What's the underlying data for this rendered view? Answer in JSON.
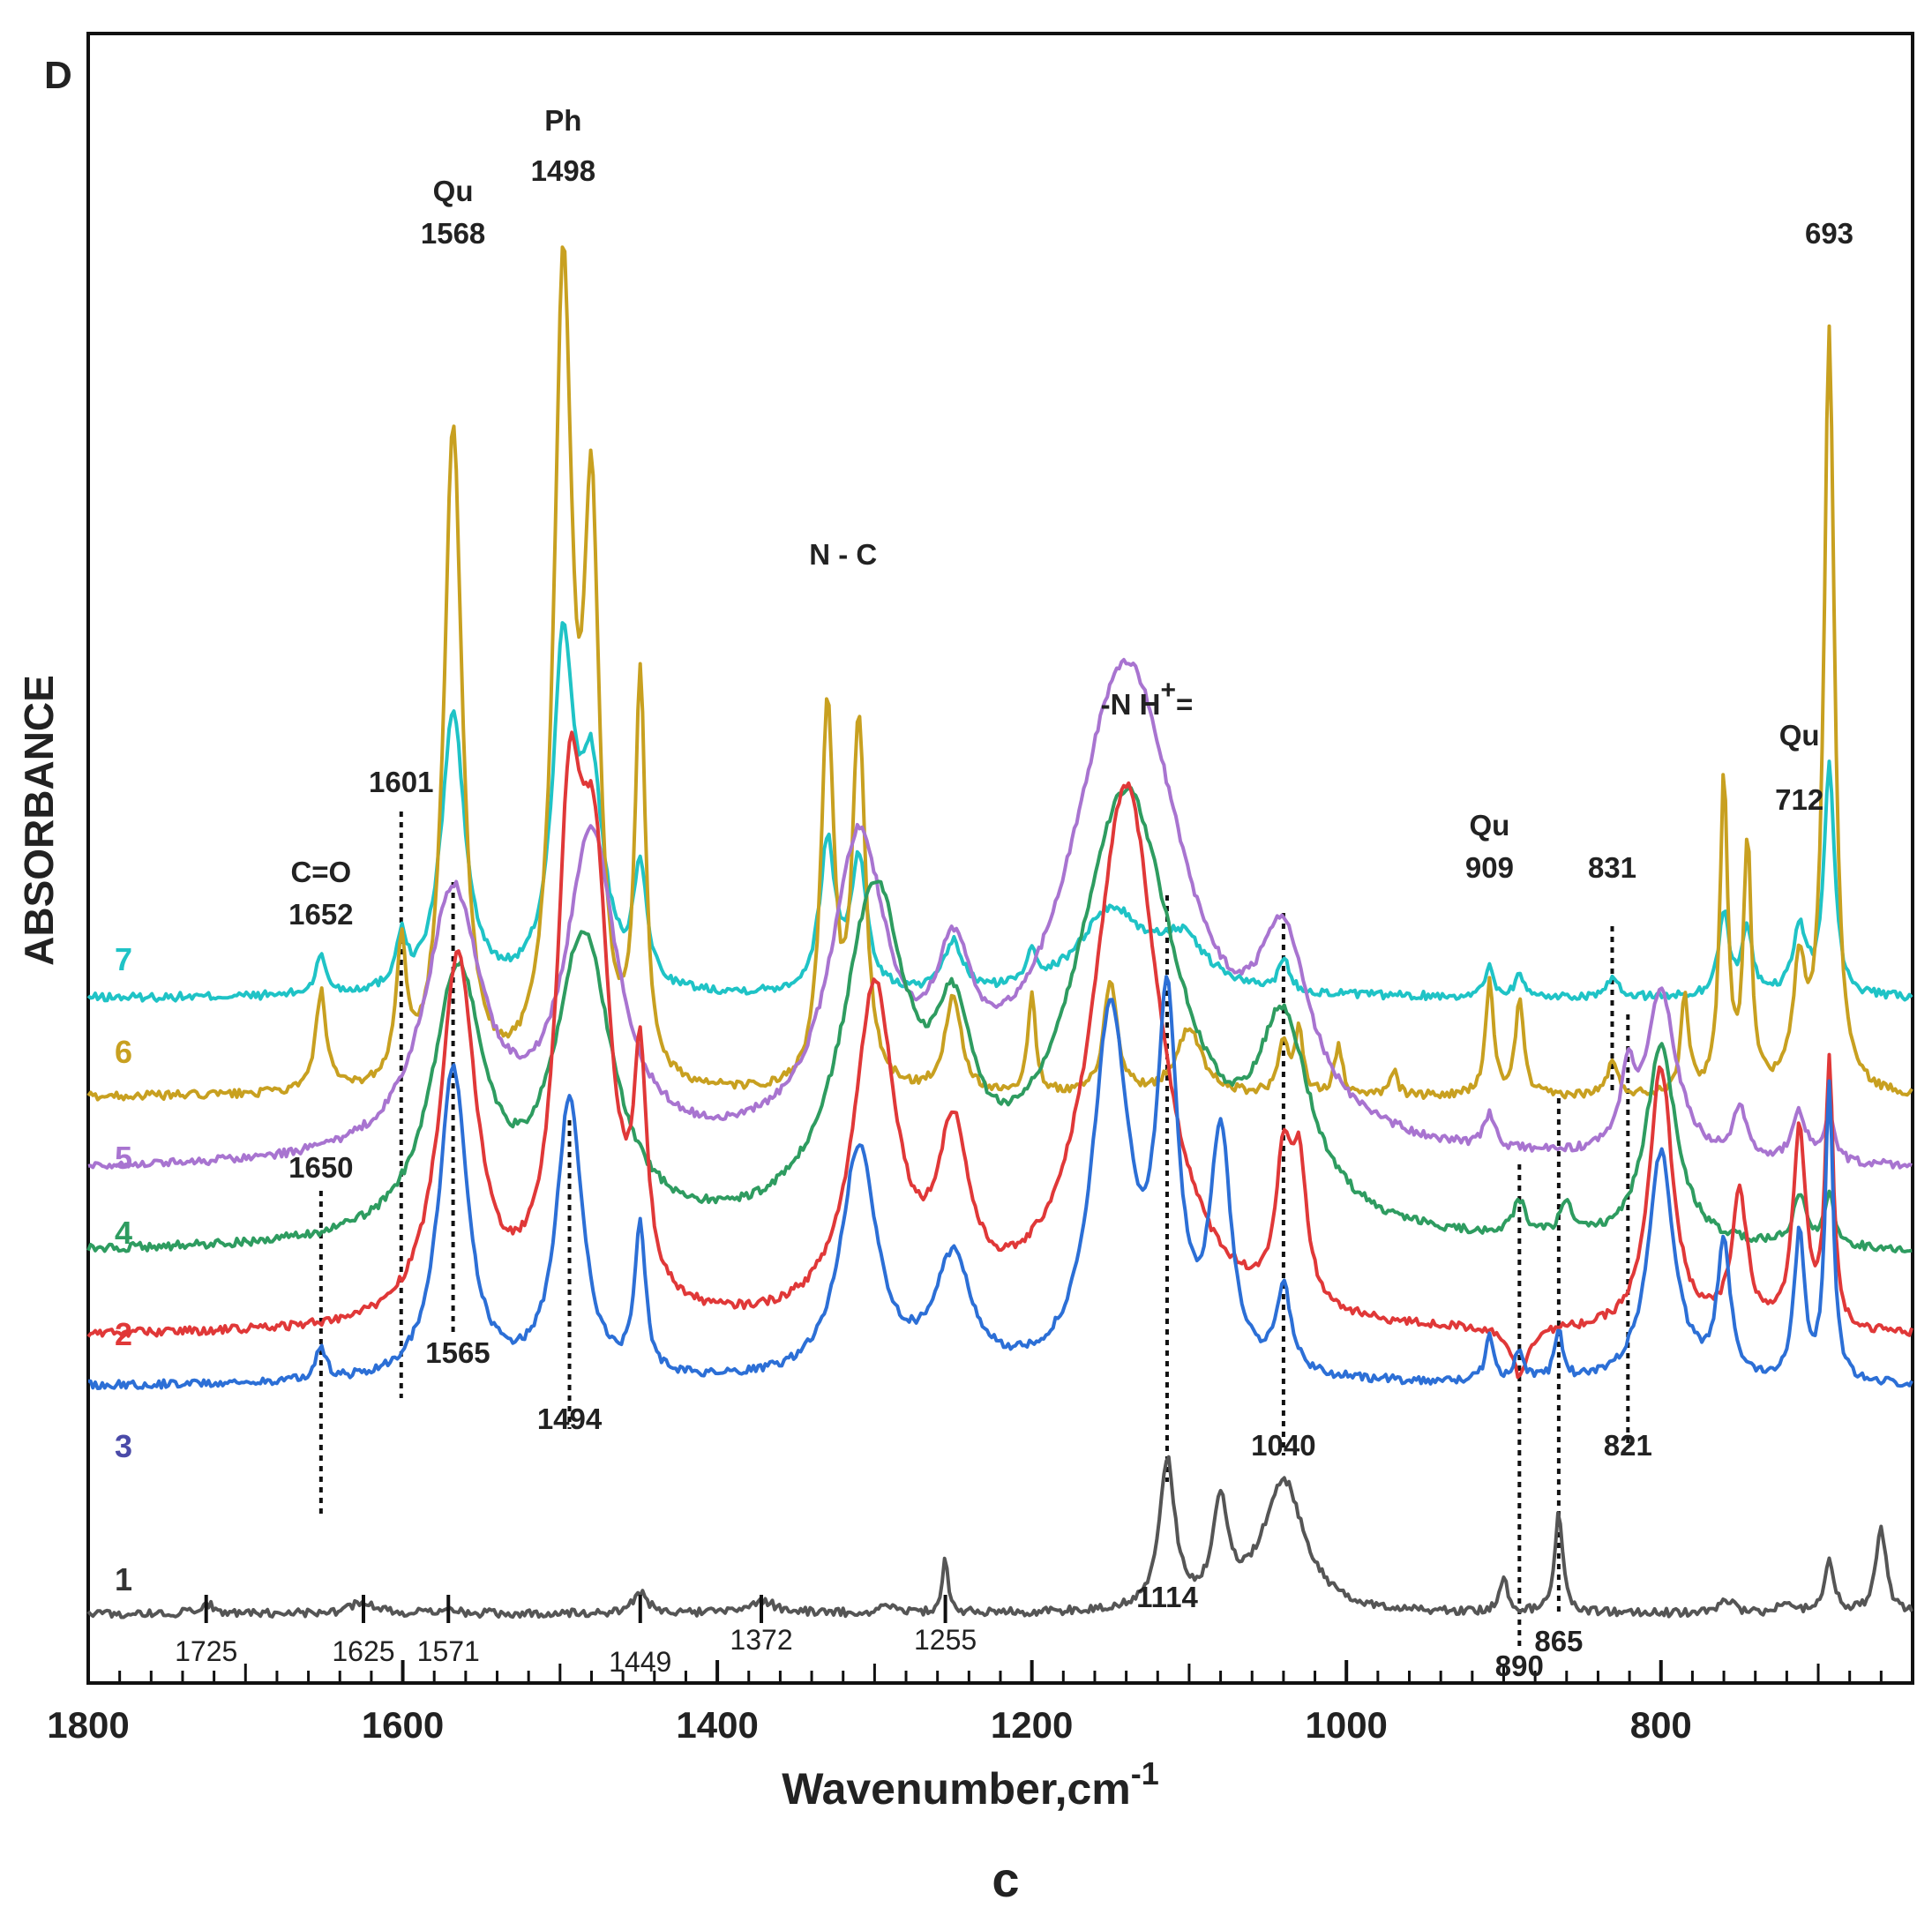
{
  "chart_data": {
    "type": "line",
    "panel_label": "D",
    "caption": "c",
    "xlabel": "Wavenumber,cm",
    "xlabel_sup": "-1",
    "ylabel": "ABSORBANCE",
    "xlim": [
      1800,
      640
    ],
    "ylim": [
      0,
      100
    ],
    "x_ticks": [
      1800,
      1600,
      1400,
      1200,
      1000,
      800
    ],
    "x_tick_labels": [
      "1800",
      "1600",
      "1400",
      "1200",
      "1000",
      "800"
    ],
    "series": [
      {
        "name": "7",
        "color": "#1fc3c6",
        "offset": 42,
        "baseline": 41.5,
        "peaks": [
          [
            1652,
            2.3,
            4
          ],
          [
            1601,
            3,
            4
          ],
          [
            1568,
            17,
            9
          ],
          [
            1498,
            20,
            8
          ],
          [
            1480,
            12,
            9
          ],
          [
            1449,
            7,
            5
          ],
          [
            1330,
            9,
            6
          ],
          [
            1310,
            8,
            6
          ],
          [
            1250,
            3,
            7
          ],
          [
            1200,
            2,
            4
          ],
          [
            1150,
            5,
            25
          ],
          [
            1105,
            3,
            20
          ],
          [
            1040,
            2,
            4
          ],
          [
            909,
            2,
            3
          ],
          [
            890,
            1.5,
            3
          ],
          [
            831,
            1,
            5
          ],
          [
            760,
            5,
            4
          ],
          [
            745,
            4,
            4
          ],
          [
            712,
            4,
            5
          ],
          [
            693,
            14,
            4
          ]
        ]
      },
      {
        "name": "6",
        "color": "#c8a020",
        "offset": 36,
        "baseline": 35.5,
        "peaks": [
          [
            1652,
            6,
            4
          ],
          [
            1601,
            8,
            4
          ],
          [
            1568,
            40,
            7
          ],
          [
            1498,
            48,
            7
          ],
          [
            1480,
            32,
            6
          ],
          [
            1449,
            24,
            4
          ],
          [
            1330,
            23,
            5
          ],
          [
            1310,
            22,
            5
          ],
          [
            1250,
            6,
            6
          ],
          [
            1200,
            6,
            3
          ],
          [
            1150,
            7,
            5
          ],
          [
            1100,
            4,
            10
          ],
          [
            1040,
            3,
            4
          ],
          [
            1030,
            4,
            3
          ],
          [
            1005,
            3,
            3
          ],
          [
            970,
            1.5,
            3
          ],
          [
            909,
            7,
            3
          ],
          [
            890,
            6,
            3
          ],
          [
            831,
            2,
            4
          ],
          [
            785,
            6,
            3
          ],
          [
            760,
            19,
            3
          ],
          [
            745,
            15,
            3
          ],
          [
            712,
            7,
            5
          ],
          [
            693,
            46,
            4
          ]
        ]
      },
      {
        "name": "5",
        "color": "#a874d0",
        "offset": 30,
        "baseline": 31,
        "peaks": [
          [
            1568,
            16,
            22
          ],
          [
            1480,
            19,
            20
          ],
          [
            1310,
            18,
            22
          ],
          [
            1250,
            8,
            15
          ],
          [
            1140,
            30,
            45
          ],
          [
            1040,
            10,
            20
          ],
          [
            909,
            2,
            4
          ],
          [
            821,
            4,
            5
          ],
          [
            800,
            10,
            12
          ],
          [
            750,
            3,
            5
          ],
          [
            712,
            3,
            5
          ],
          [
            693,
            3,
            4
          ]
        ]
      },
      {
        "name": "4",
        "color": "#2e9c60",
        "offset": 26,
        "baseline": 26,
        "peaks": [
          [
            1565,
            16,
            20
          ],
          [
            1485,
            18,
            22
          ],
          [
            1300,
            20,
            25
          ],
          [
            1250,
            9,
            15
          ],
          [
            1140,
            27,
            40
          ],
          [
            1040,
            11,
            20
          ],
          [
            890,
            2,
            5
          ],
          [
            860,
            2,
            5
          ],
          [
            800,
            12,
            12
          ],
          [
            712,
            3,
            5
          ],
          [
            693,
            3,
            4
          ]
        ]
      },
      {
        "name": "2",
        "color": "#e03838",
        "offset": 18,
        "baseline": 21,
        "peaks": [
          [
            1565,
            22,
            14
          ],
          [
            1494,
            26,
            10
          ],
          [
            1478,
            24,
            12
          ],
          [
            1449,
            13,
            5
          ],
          [
            1300,
            20,
            16
          ],
          [
            1250,
            10,
            12
          ],
          [
            1140,
            33,
            26
          ],
          [
            1040,
            8,
            6
          ],
          [
            1030,
            8,
            6
          ],
          [
            890,
            -3,
            6
          ],
          [
            800,
            16,
            9
          ],
          [
            750,
            8,
            6
          ],
          [
            712,
            12,
            5
          ],
          [
            693,
            16,
            3
          ]
        ]
      },
      {
        "name": "3",
        "color": "#2c6fd6",
        "offset": 16,
        "baseline": 18,
        "peaks": [
          [
            1652,
            2,
            4
          ],
          [
            1568,
            19,
            11
          ],
          [
            1494,
            17,
            10
          ],
          [
            1449,
            9,
            4
          ],
          [
            1310,
            14,
            14
          ],
          [
            1250,
            7,
            14
          ],
          [
            1150,
            22,
            14
          ],
          [
            1114,
            21,
            8
          ],
          [
            1080,
            14,
            8
          ],
          [
            1040,
            5,
            6
          ],
          [
            909,
            3,
            3
          ],
          [
            890,
            2,
            3
          ],
          [
            865,
            3,
            3
          ],
          [
            800,
            14,
            10
          ],
          [
            760,
            8,
            5
          ],
          [
            712,
            9,
            4
          ],
          [
            693,
            18,
            3
          ]
        ]
      },
      {
        "name": "1",
        "color": "#555555",
        "offset": 7,
        "baseline": 4.2,
        "peaks": [
          [
            1725,
            0.6,
            6
          ],
          [
            1625,
            0.8,
            8
          ],
          [
            1571,
            0.3,
            6
          ],
          [
            1449,
            1.2,
            6
          ],
          [
            1372,
            0.8,
            10
          ],
          [
            1290,
            0.5,
            6
          ],
          [
            1255,
            3.2,
            2
          ],
          [
            1114,
            9,
            6
          ],
          [
            1080,
            6,
            6
          ],
          [
            1040,
            8,
            16
          ],
          [
            900,
            2,
            3
          ],
          [
            865,
            6,
            3
          ],
          [
            758,
            0.8,
            5
          ],
          [
            720,
            0.6,
            5
          ],
          [
            693,
            3,
            4
          ],
          [
            660,
            5,
            4
          ]
        ]
      }
    ],
    "peak_labels": [
      {
        "text": "Ph",
        "x": 1498,
        "row": "top1"
      },
      {
        "text": "1498",
        "x": 1498,
        "row": "top2"
      },
      {
        "text": "Qu",
        "x": 1568,
        "row": "top3"
      },
      {
        "text": "1568",
        "x": 1568,
        "row": "top4"
      },
      {
        "text": "693",
        "x": 693,
        "row": "top4"
      },
      {
        "text": "N - C",
        "x": 1320,
        "row": "nc"
      },
      {
        "text": "C=O",
        "x": 1652,
        "row": "co1"
      },
      {
        "text": "1652",
        "x": 1652,
        "row": "co2"
      },
      {
        "text": "1601",
        "x": 1601,
        "row": "r1601"
      },
      {
        "text": "Qu",
        "x": 712,
        "row": "qu712a"
      },
      {
        "text": "712",
        "x": 712,
        "row": "qu712b"
      },
      {
        "text": "Qu",
        "x": 909,
        "row": "qu909a"
      },
      {
        "text": "909",
        "x": 909,
        "row": "qu909b"
      },
      {
        "text": "831",
        "x": 831,
        "row": "r831"
      },
      {
        "text": "1650",
        "x": 1652,
        "row": "r1650"
      },
      {
        "text": "1565",
        "x": 1565,
        "row": "r1565"
      },
      {
        "text": "1494",
        "x": 1494,
        "row": "r1494"
      },
      {
        "text": "1040",
        "x": 1040,
        "row": "r1040"
      },
      {
        "text": "821",
        "x": 821,
        "row": "r821"
      },
      {
        "text": "1114",
        "x": 1114,
        "row": "r1114"
      },
      {
        "text": "890",
        "x": 890,
        "row": "r890"
      },
      {
        "text": "865",
        "x": 865,
        "row": "r865"
      },
      {
        "text": "1725",
        "x": 1725,
        "row": "low"
      },
      {
        "text": "1625",
        "x": 1625,
        "row": "low"
      },
      {
        "text": "1571",
        "x": 1571,
        "row": "low"
      },
      {
        "text": "1449",
        "x": 1449,
        "row": "low2"
      },
      {
        "text": "1372",
        "x": 1372,
        "row": "low1"
      },
      {
        "text": "1255",
        "x": 1255,
        "row": "low1"
      }
    ],
    "nh_label": {
      "prefix": "-N H",
      "sup": "+",
      "suffix": "="
    },
    "dashed_guides": [
      1652,
      1601,
      1568,
      1494,
      1114,
      1040,
      890,
      865,
      831,
      821
    ]
  }
}
